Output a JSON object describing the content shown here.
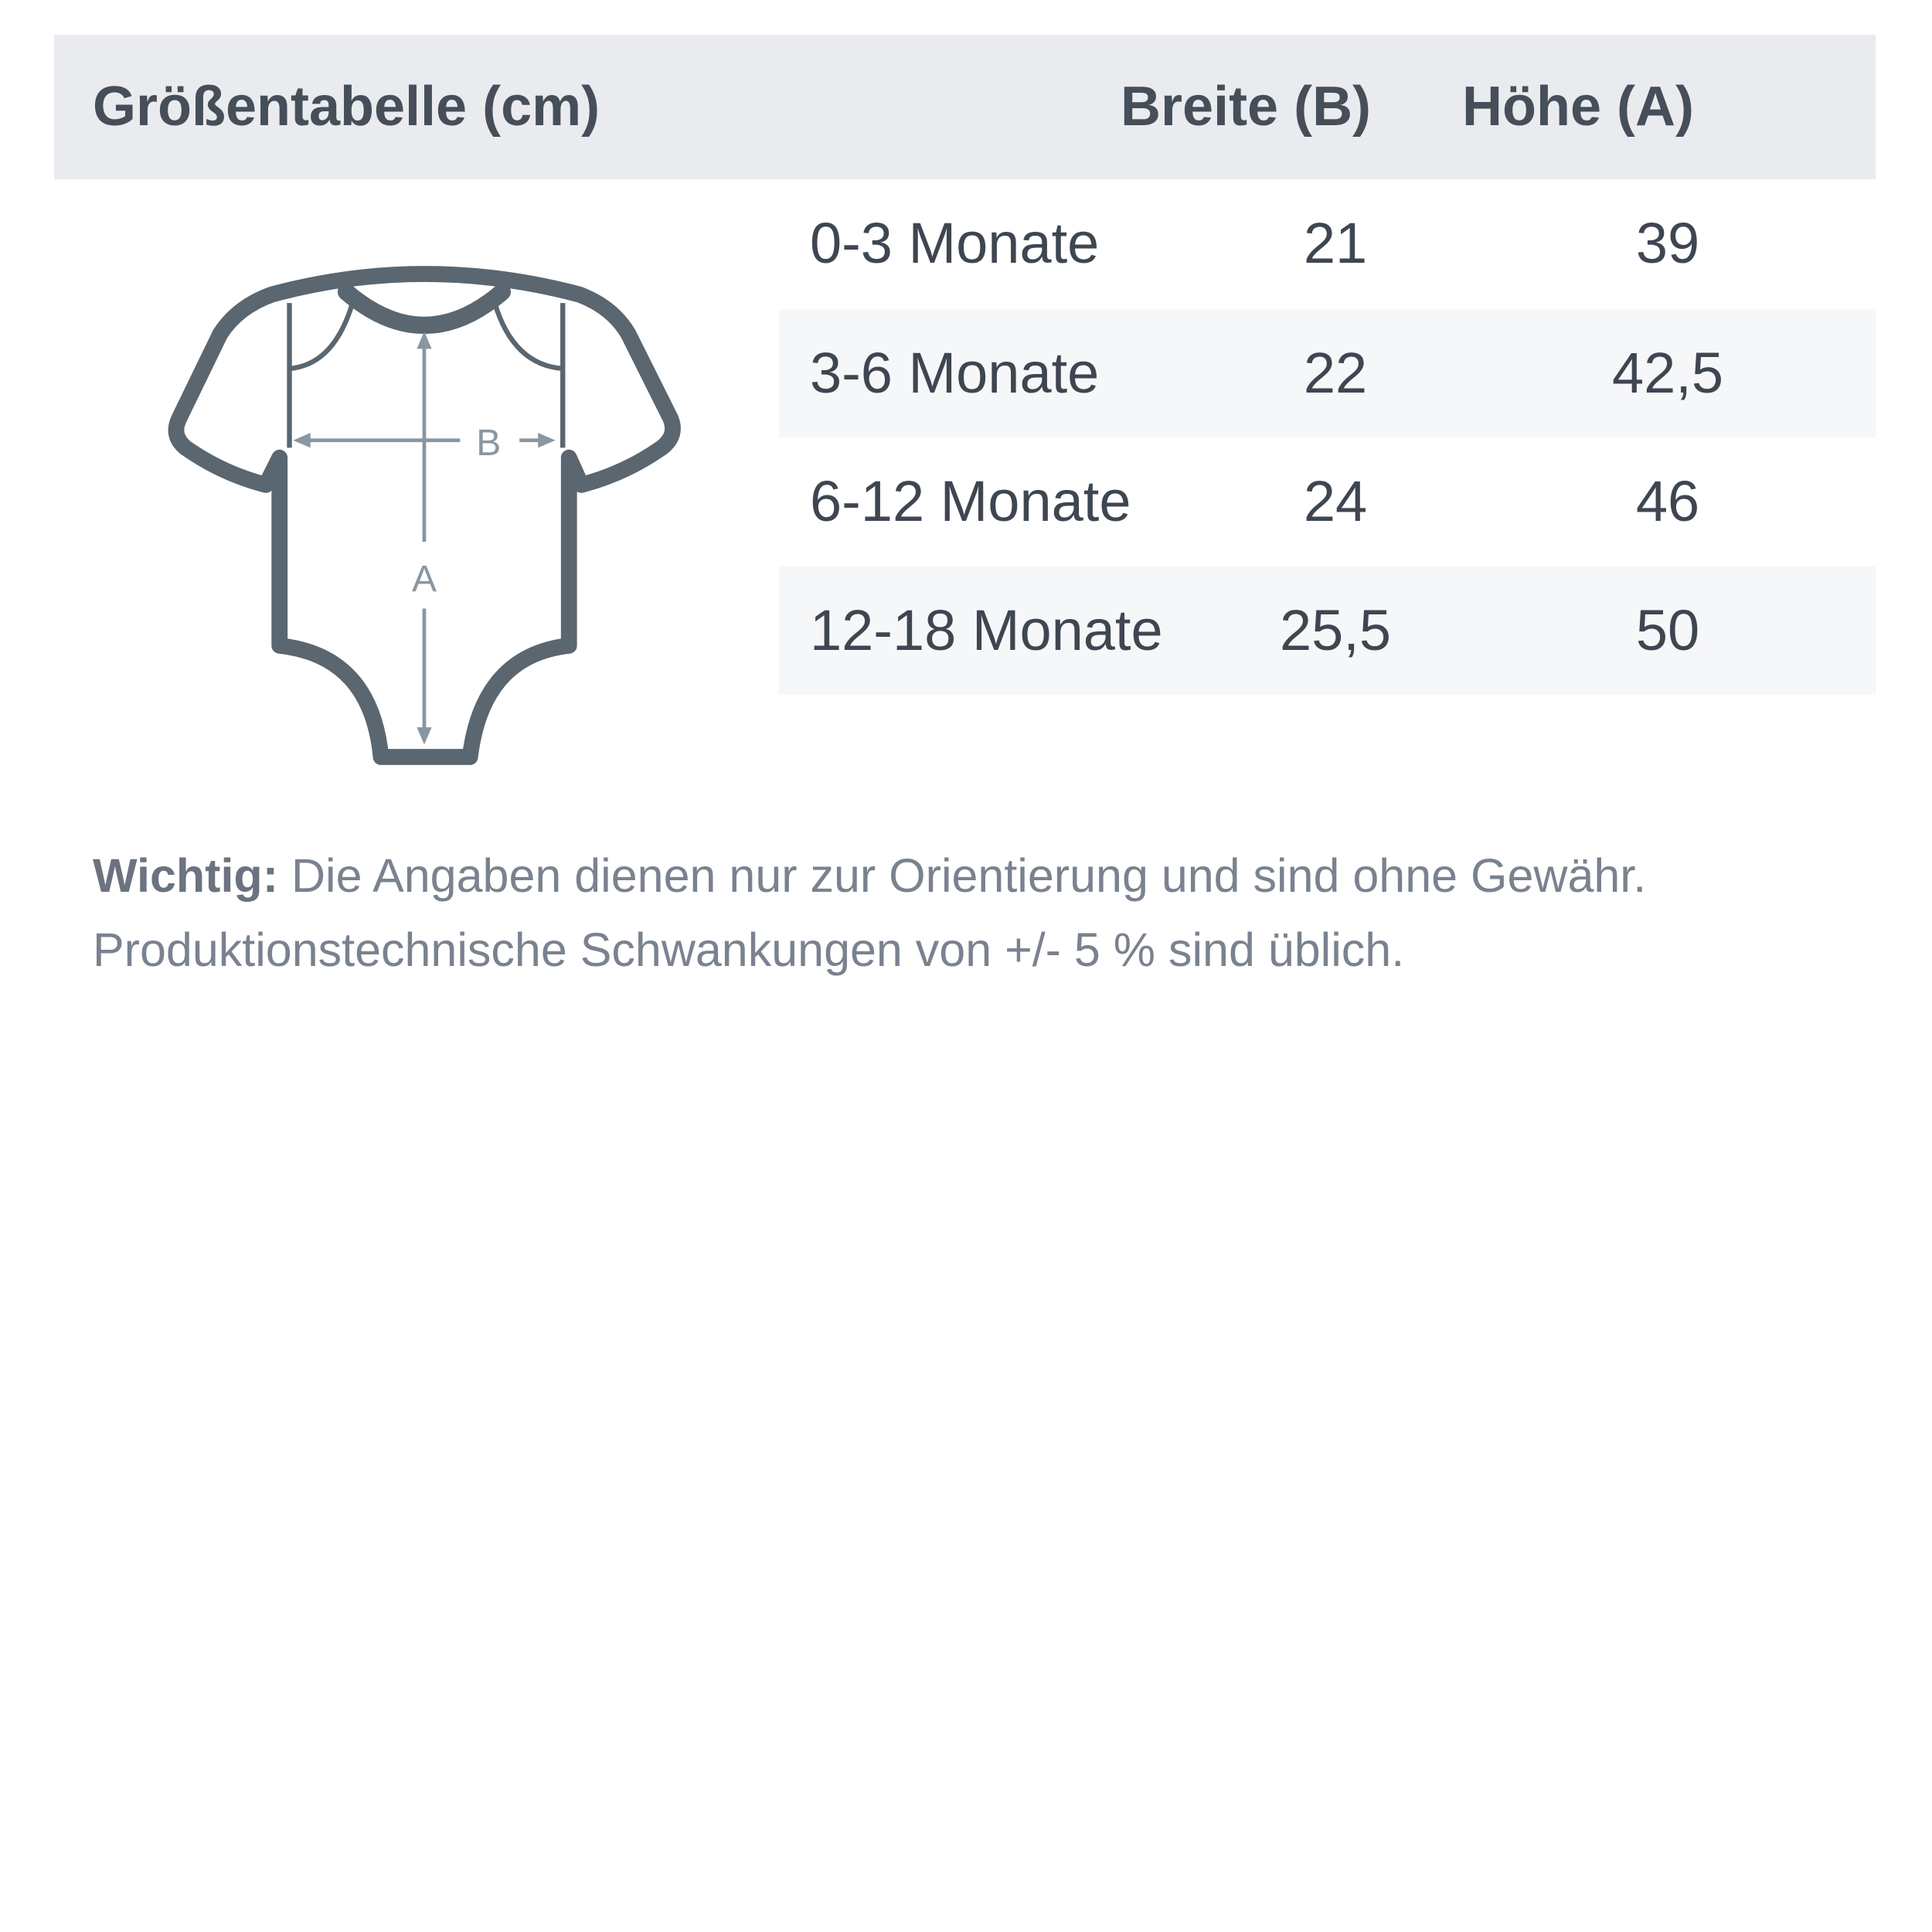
{
  "header": {
    "title": "Größentabelle (cm)",
    "col_width": "Breite (B)",
    "col_height": "Höhe (A)"
  },
  "rows": [
    {
      "size": "0-3 Monate",
      "width": "21",
      "height": "39"
    },
    {
      "size": "3-6 Monate",
      "width": "22",
      "height": "42,5"
    },
    {
      "size": "6-12 Monate",
      "width": "24",
      "height": "46"
    },
    {
      "size": "12-18 Monate",
      "width": "25,5",
      "height": "50"
    }
  ],
  "illustration": {
    "icon": "baby-bodysuit-icon",
    "label_width": "B",
    "label_height": "A"
  },
  "note": {
    "label": "Wichtig:",
    "line1": " Die Angaben dienen nur zur Orientierung und sind ohne Gewähr.",
    "line2": "Produktionstechnische Schwankungen von +/- 5 % sind üblich."
  },
  "colors": {
    "header_bg": "#e9ebef",
    "text": "#3e4651",
    "outline": "#5a6670",
    "arrows": "#8a96a0"
  }
}
